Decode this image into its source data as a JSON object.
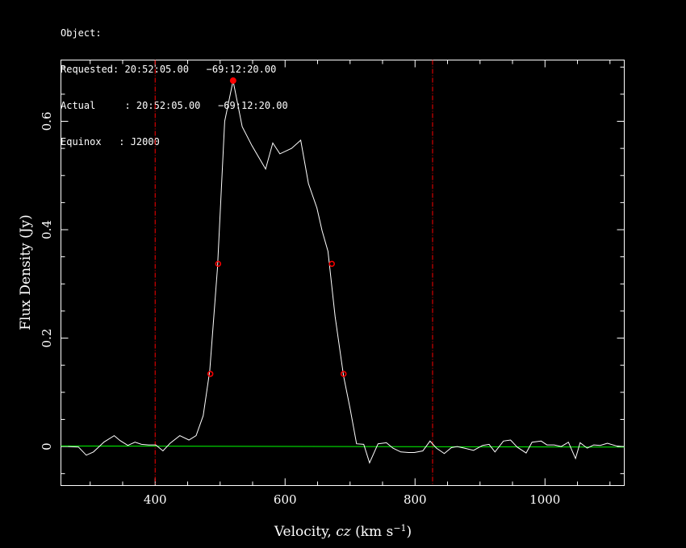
{
  "header": {
    "object_line": "Object:",
    "requested_line": "Requested: 20:52:05.00   −69:12:20.00",
    "actual_line": "Actual     : 20:52:05.00   −69:12:20.00",
    "equinox_line": "Equinox   : J2000"
  },
  "chart_data": {
    "type": "line",
    "title": "",
    "xlabel": "Velocity, cz (km s⁻¹)",
    "xlabel_parts": {
      "main": "Velocity, ",
      "italic": "cz",
      "unit_open": " (km s",
      "sup": "−1",
      "unit_close": ")"
    },
    "ylabel": "Flux Density (Jy)",
    "xlim": [
      255,
      1122
    ],
    "ylim": [
      -0.072,
      0.713
    ],
    "xticks": [
      400,
      600,
      800,
      1000
    ],
    "xtick_labels": [
      "400",
      "600",
      "800",
      "1000"
    ],
    "yticks": [
      0,
      0.2,
      0.4,
      0.6
    ],
    "ytick_labels": [
      "0",
      "0.2",
      "0.4",
      "0.6"
    ],
    "grid": false,
    "colors": {
      "spectrum": "#ffffff",
      "baseline": "#00ff00",
      "markers": "#ff0000",
      "limits": "#ff0000",
      "axes": "#ffffff"
    },
    "series": [
      {
        "x": [
          266,
          282,
          294,
          305,
          321,
          337,
          346,
          358,
          369,
          379,
          390,
          401,
          412,
          423,
          438,
          452,
          463,
          474,
          484,
          496,
          507,
          520,
          534,
          549,
          570,
          581,
          592,
          610,
          624,
          636,
          649,
          657,
          666,
          677,
          690,
          700,
          710,
          721,
          730,
          743,
          756,
          766,
          778,
          790,
          799,
          812,
          823,
          833,
          845,
          856,
          865,
          876,
          890,
          904,
          914,
          923,
          936,
          947,
          957,
          971,
          980,
          994,
          1003,
          1014,
          1025,
          1036,
          1047,
          1054,
          1065,
          1075,
          1085,
          1096,
          1110,
          1120
        ],
        "y": [
          0,
          -0.001,
          -0.016,
          -0.01,
          0.008,
          0.02,
          0.011,
          0.002,
          0.008,
          0.004,
          0.003,
          0.003,
          -0.008,
          0.006,
          0.02,
          0.012,
          0.02,
          0.057,
          0.14,
          0.33,
          0.6,
          0.675,
          0.59,
          0.555,
          0.512,
          0.56,
          0.54,
          0.55,
          0.565,
          0.485,
          0.44,
          0.398,
          0.36,
          0.24,
          0.13,
          0.07,
          0.005,
          0.004,
          -0.03,
          0.005,
          0.007,
          -0.003,
          -0.01,
          -0.011,
          -0.011,
          -0.008,
          0.01,
          -0.003,
          -0.013,
          -0.002,
          0,
          -0.003,
          -0.007,
          0.002,
          0.004,
          -0.01,
          0.01,
          0.012,
          -0.001,
          -0.012,
          0.008,
          0.01,
          0.003,
          0.003,
          0,
          0.008,
          -0.022,
          0.007,
          -0.003,
          0.003,
          0.002,
          0.006,
          0.001,
          0
        ]
      }
    ],
    "baseline": {
      "x": [
        255,
        1122
      ],
      "y": [
        0.001,
        -0.001
      ]
    },
    "limits": [
      400,
      827
    ],
    "peak_marker": {
      "x": 520,
      "y": 0.675
    },
    "markers": [
      {
        "x": 485,
        "y": 0.134
      },
      {
        "x": 497,
        "y": 0.337
      },
      {
        "x": 672,
        "y": 0.337
      },
      {
        "x": 690,
        "y": 0.134
      }
    ]
  }
}
